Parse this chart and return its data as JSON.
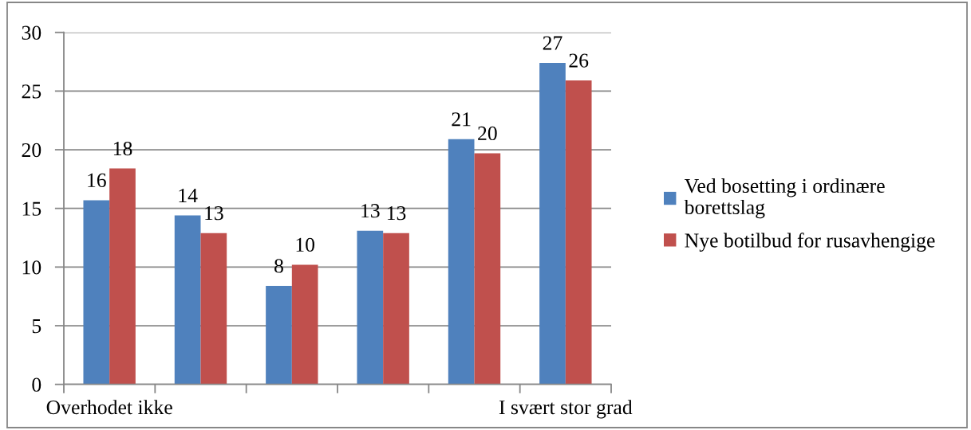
{
  "chart_data": {
    "type": "bar",
    "categories": [
      "Overhodet ikke",
      null,
      null,
      null,
      null,
      "I svært stor grad"
    ],
    "series": [
      {
        "name": "Ved bosetting i ordinære borettslag",
        "color": "#4f81bd",
        "values": [
          15.7,
          14.4,
          8.4,
          13.1,
          20.9,
          27.4
        ],
        "value_labels": [
          "16",
          "14",
          "8",
          "13",
          "21",
          "27"
        ]
      },
      {
        "name": "Nye botilbud for rusavhengige",
        "color": "#c0504d",
        "values": [
          18.4,
          12.9,
          10.2,
          12.9,
          19.7,
          25.9
        ],
        "value_labels": [
          "18",
          "13",
          "10",
          "13",
          "20",
          "26"
        ]
      }
    ],
    "ylim": [
      0,
      30
    ],
    "yticks": [
      0,
      5,
      10,
      15,
      20,
      25,
      30
    ],
    "grid": "y",
    "legend": "right"
  }
}
